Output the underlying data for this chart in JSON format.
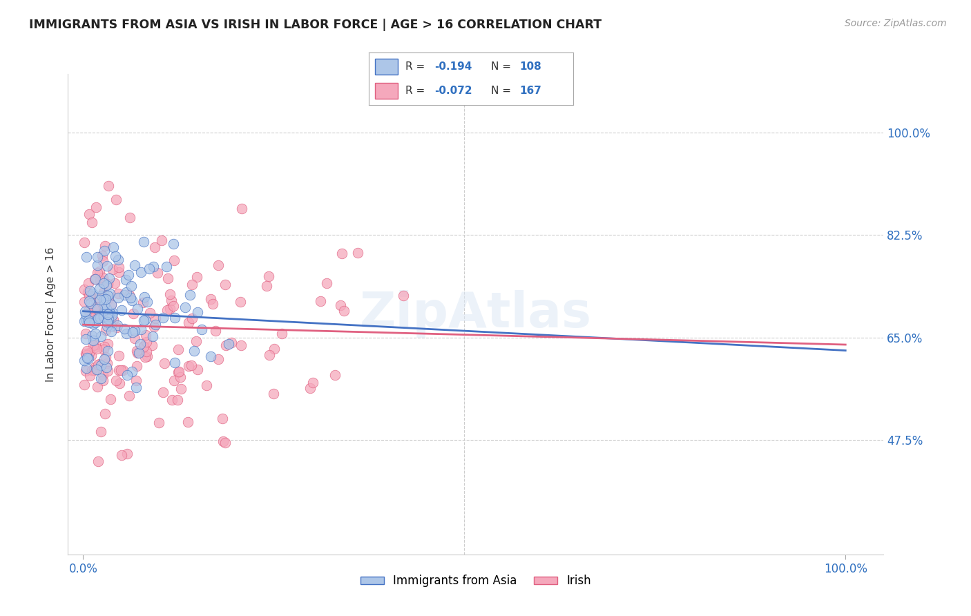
{
  "title": "IMMIGRANTS FROM ASIA VS IRISH IN LABOR FORCE | AGE > 16 CORRELATION CHART",
  "source": "Source: ZipAtlas.com",
  "ylabel": "In Labor Force | Age > 16",
  "legend_label1": "Immigrants from Asia",
  "legend_label2": "Irish",
  "R1": -0.194,
  "N1": 108,
  "R2": -0.072,
  "N2": 167,
  "color1": "#adc6e8",
  "color2": "#f5a8bc",
  "line_color1": "#4472c4",
  "line_color2": "#e06080",
  "ytick_labels": [
    "47.5%",
    "65.0%",
    "82.5%",
    "100.0%"
  ],
  "ytick_values": [
    0.475,
    0.65,
    0.825,
    1.0
  ],
  "xlim": [
    -0.02,
    1.05
  ],
  "ylim": [
    0.28,
    1.1
  ],
  "background_color": "#ffffff",
  "line1_start_y": 0.695,
  "line1_end_y": 0.628,
  "line2_start_y": 0.672,
  "line2_end_y": 0.638
}
